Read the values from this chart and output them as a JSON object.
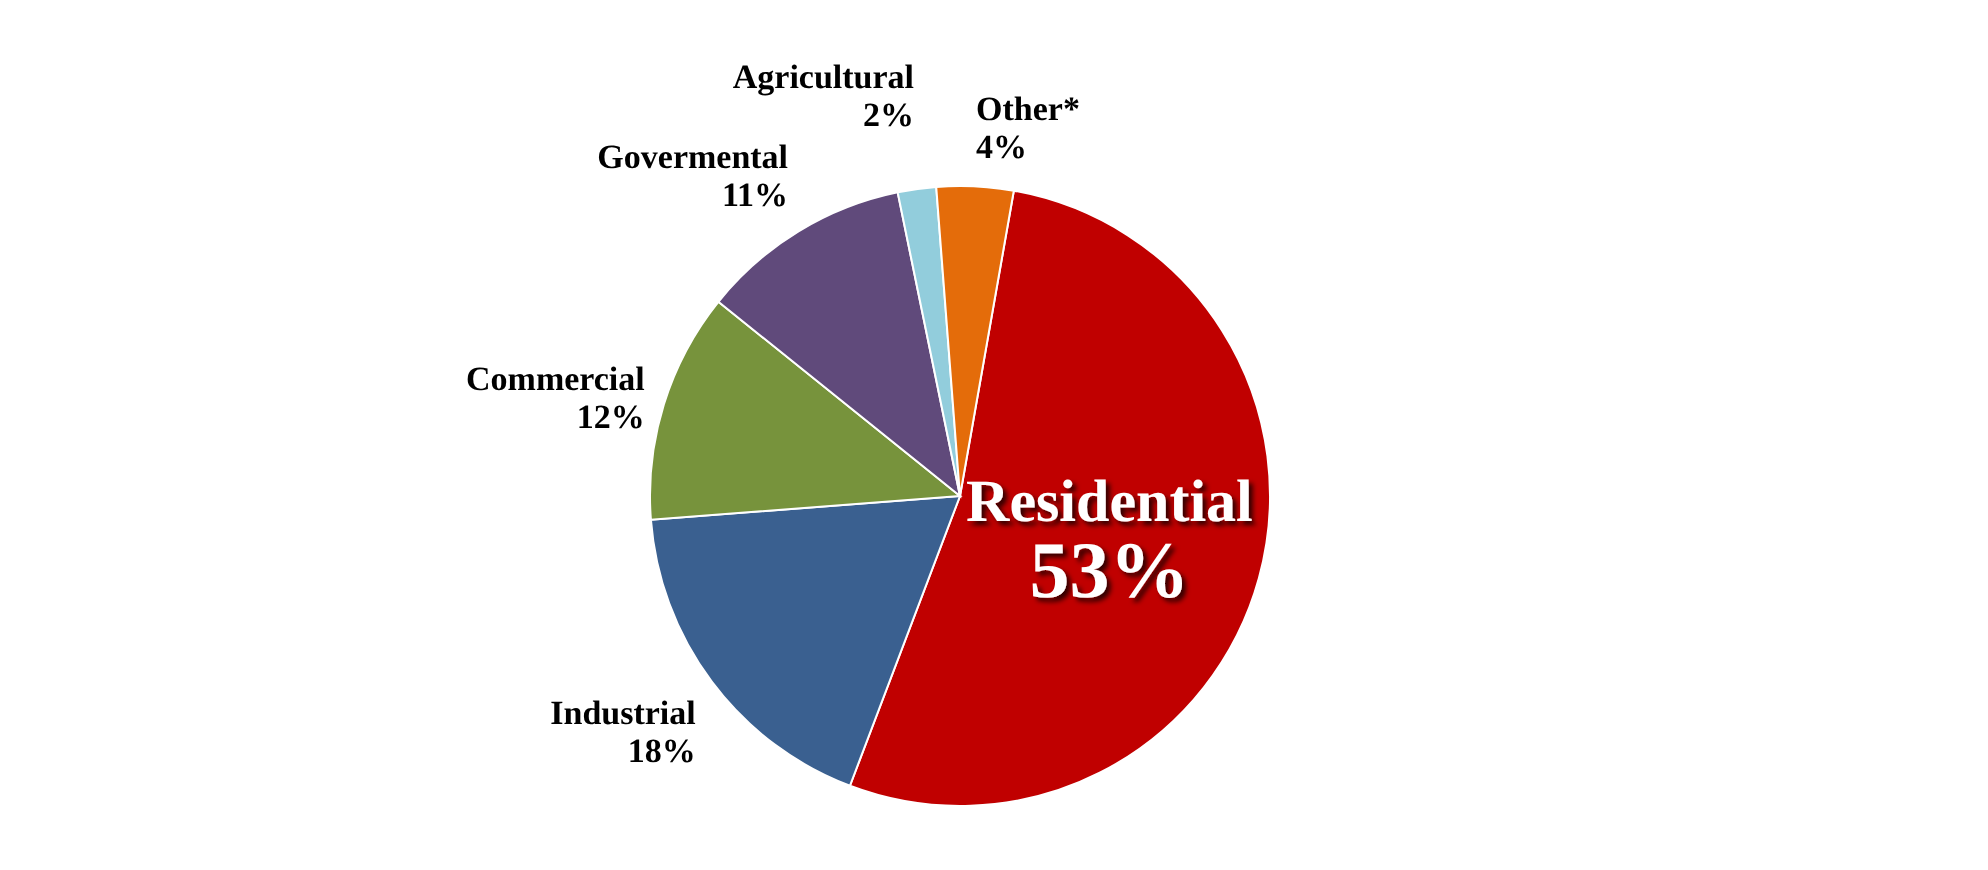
{
  "chart_data": {
    "type": "pie",
    "categories": [
      "Residential",
      "Industrial",
      "Commercial",
      "Govermental",
      "Agricultural",
      "Other*"
    ],
    "values": [
      53,
      18,
      12,
      11,
      2,
      4
    ],
    "colors": [
      "#c00000",
      "#3a6090",
      "#77933c",
      "#604a7b",
      "#92cddc",
      "#e46c0a"
    ],
    "value_labels": [
      "53%",
      "18%",
      "12%",
      "11%",
      "2%",
      "4%"
    ]
  }
}
